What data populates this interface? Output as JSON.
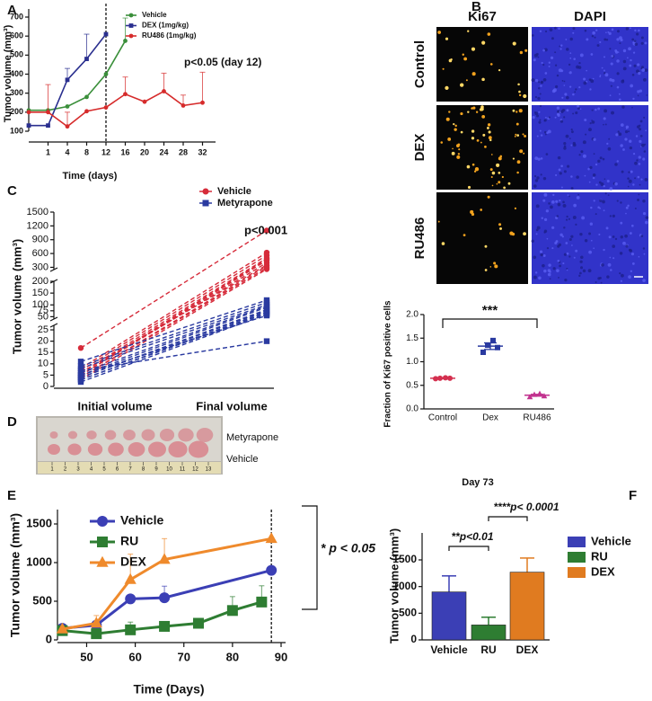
{
  "chart_data": [
    {
      "type": "line",
      "panel": "A",
      "ylabel": "Tumor volume (mm³)",
      "xlabel": "Time (days)",
      "annotation": "p<0.05 (day 12)",
      "categories": [
        null,
        "1",
        "4",
        "8",
        "12",
        "16",
        "20",
        "24",
        "28",
        "32"
      ],
      "ylim": [
        100,
        700
      ],
      "yticks": [
        100,
        200,
        300,
        400,
        500,
        600,
        700
      ],
      "series": [
        {
          "name": "Vehicle",
          "color": "#3a8f3a",
          "values": [
            210,
            210,
            230,
            280,
            400,
            575,
            null,
            null,
            null,
            null
          ],
          "errors": [
            null,
            null,
            null,
            null,
            null,
            120,
            null,
            null,
            null,
            null
          ]
        },
        {
          "name": "DEX  (1mg/kg)",
          "color": "#2a2f8f",
          "values": [
            130,
            130,
            370,
            480,
            610,
            null,
            null,
            null,
            null,
            null
          ],
          "errors": [
            null,
            null,
            60,
            130,
            null,
            null,
            null,
            null,
            null,
            null
          ]
        },
        {
          "name": "RU486 (1mg/kg)",
          "color": "#d62b2b",
          "values": [
            200,
            200,
            125,
            205,
            225,
            295,
            255,
            310,
            235,
            250
          ],
          "errors": [
            null,
            145,
            75,
            null,
            null,
            90,
            null,
            95,
            55,
            160
          ]
        }
      ]
    },
    {
      "type": "image-grid",
      "panel": "B",
      "columns": [
        "Ki67",
        "DAPI"
      ],
      "rows": [
        "Control",
        "DEX",
        "RU486"
      ]
    },
    {
      "type": "dot",
      "ylabel": "Fraction of Ki67 positive cells",
      "categories": [
        "Control",
        "Dex",
        "RU486"
      ],
      "points": [
        [
          0.64,
          0.65,
          0.66,
          0.65
        ],
        [
          1.2,
          1.35,
          1.45,
          1.3
        ],
        [
          0.25,
          0.3,
          0.32,
          0.27
        ]
      ],
      "means": [
        0.65,
        1.33,
        0.29
      ],
      "sem": [
        0.01,
        0.07,
        0.02
      ],
      "colors": [
        "#d4304f",
        "#2a3aa0",
        "#c2338f"
      ],
      "ylim": [
        0,
        2
      ],
      "yticks": [
        {
          "value": 0,
          "label": "0.0"
        },
        0.5,
        {
          "value": 1,
          "label": "1.0"
        },
        1.5,
        {
          "value": 2,
          "label": "2.0"
        }
      ],
      "annotation": "***"
    },
    {
      "type": "paired",
      "panel": "C",
      "ylabel": "Tumor volume (mm³)",
      "categories": [
        "Initial  volume",
        "Final volume"
      ],
      "annotation": "p<0.001",
      "y_segments": [
        {
          "ylim": [
            0,
            27
          ],
          "yticks": [
            0,
            5,
            10,
            15,
            20,
            25
          ]
        },
        {
          "ylim": [
            40,
            200
          ],
          "yticks": [
            50,
            75,
            100,
            150,
            200
          ]
        },
        {
          "ylim": [
            250,
            1500
          ],
          "yticks": [
            300,
            600,
            900,
            1200,
            1500
          ]
        }
      ],
      "series": [
        {
          "name": "Vehicle",
          "color": "#d62b3a",
          "initial": [
            17,
            8,
            7,
            6,
            5,
            5,
            4,
            4,
            3,
            6,
            5
          ],
          "final": [
            1100,
            620,
            560,
            500,
            450,
            400,
            330,
            290,
            260,
            350,
            480
          ]
        },
        {
          "name": "Metyrapone",
          "color": "#2a3aa0",
          "initial": [
            11,
            9,
            8,
            6,
            5,
            4,
            4,
            3,
            3,
            2,
            5,
            7
          ],
          "final": [
            120,
            110,
            100,
            95,
            90,
            80,
            75,
            70,
            65,
            60,
            55,
            20
          ]
        }
      ]
    },
    {
      "type": "photo",
      "panel": "D",
      "rows": [
        "Metyrapone",
        "Vehicle"
      ],
      "ruler": [
        "1",
        "2",
        "3",
        "4",
        "5",
        "6",
        "7",
        "8",
        "9",
        "10",
        "11",
        "12",
        "13"
      ]
    },
    {
      "type": "line",
      "panel": "E",
      "xlabel": "Time (Days)",
      "ylabel": "Tumor volume (mm³)",
      "annotation": "* p < 0.05",
      "xlim": [
        44,
        90
      ],
      "xticks": [
        50,
        60,
        70,
        80,
        90
      ],
      "ylim": [
        0,
        1500
      ],
      "yticks": [
        0,
        500,
        1000,
        1500
      ],
      "vline": 88,
      "series": [
        {
          "name": "Vehicle",
          "color": "#3b3fb5",
          "x": [
            45,
            52,
            59,
            66,
            88
          ],
          "values": [
            150,
            190,
            530,
            545,
            900
          ],
          "errors": [
            null,
            null,
            null,
            150,
            null
          ]
        },
        {
          "name": "RU",
          "color": "#2e7d32",
          "x": [
            45,
            52,
            59,
            66,
            73,
            80,
            86
          ],
          "values": [
            120,
            80,
            130,
            175,
            215,
            380,
            490
          ],
          "errors": [
            null,
            null,
            100,
            60,
            null,
            180,
            210
          ]
        },
        {
          "name": "DEX",
          "color": "#ef8a2c",
          "x": [
            45,
            52,
            59,
            66,
            88
          ],
          "values": [
            140,
            215,
            780,
            1040,
            1310
          ],
          "errors": [
            null,
            100,
            330,
            270,
            null
          ]
        }
      ]
    },
    {
      "type": "bar",
      "panel": "F",
      "title": "Day 73",
      "ylabel": "Tumor volume (mm³)",
      "categories": [
        "Vehicle",
        "RU",
        "DEX"
      ],
      "values": [
        900,
        280,
        1270
      ],
      "errors": [
        300,
        145,
        265
      ],
      "colors": [
        "#3b3fb5",
        "#2e7d32",
        "#e07b20"
      ],
      "ylim": [
        0,
        1500
      ],
      "yticks": [
        0,
        500,
        1000,
        1500
      ],
      "annotations": [
        "**p<0.01",
        "****p< 0.0001"
      ]
    }
  ]
}
